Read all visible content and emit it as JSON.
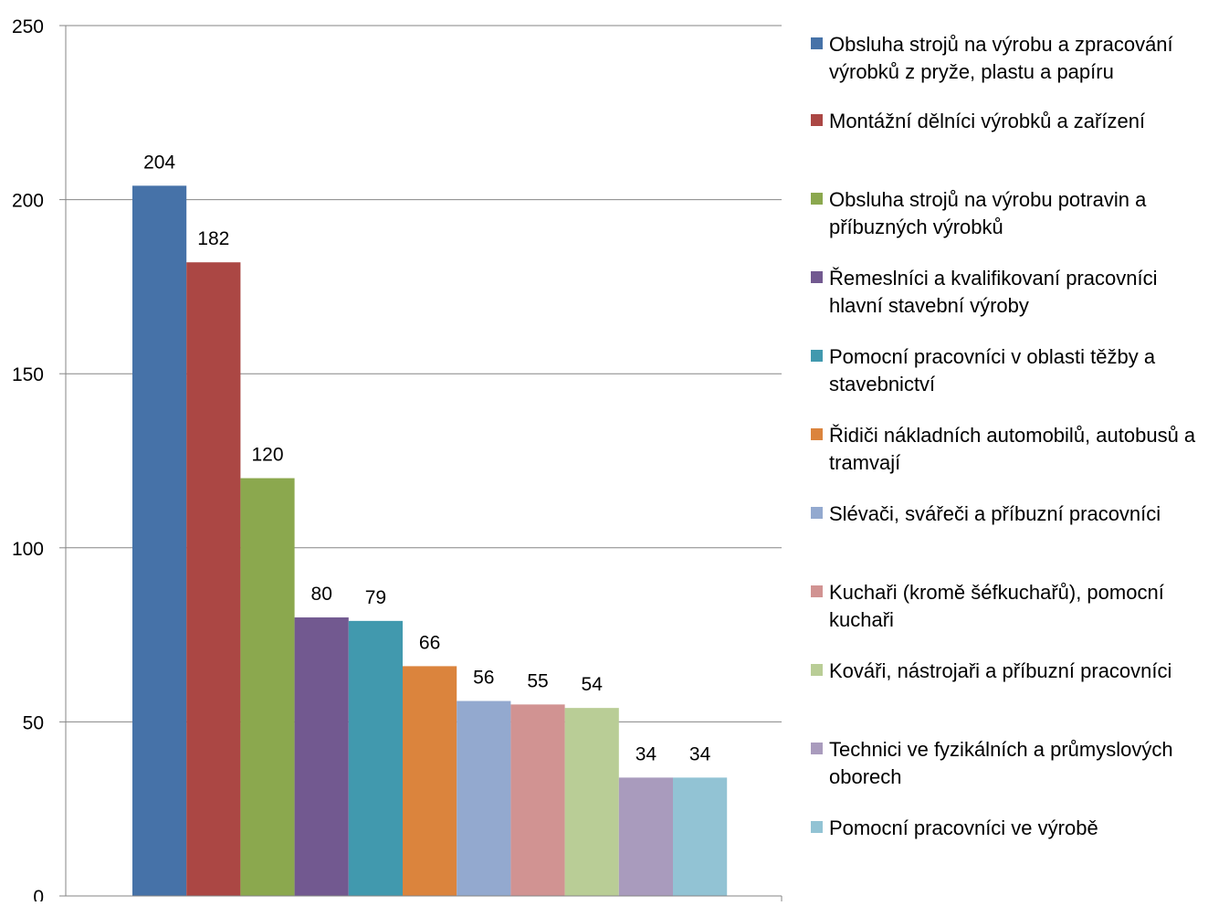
{
  "chart_data": {
    "type": "bar",
    "title": "",
    "xlabel": "",
    "ylabel": "",
    "ylim": [
      0,
      250
    ],
    "yticks": [
      0,
      50,
      100,
      150,
      200,
      250
    ],
    "grid": true,
    "legend_position": "right",
    "series": [
      {
        "name": "Obsluha strojů na výrobu a zpracování výrobků z pryže, plastu a papíru",
        "value": 204,
        "color": "#4672A8"
      },
      {
        "name": "Montážní dělníci výrobků a zařízení",
        "value": 182,
        "color": "#AB4744"
      },
      {
        "name": "Obsluha strojů na výrobu potravin a příbuzných výrobků",
        "value": 120,
        "color": "#8BA84E"
      },
      {
        "name": "Řemeslníci a kvalifikovaní pracovníci hlavní stavební výroby",
        "value": 80,
        "color": "#725990"
      },
      {
        "name": "Pomocní pracovníci v oblasti těžby a stavebnictví",
        "value": 79,
        "color": "#4199AE"
      },
      {
        "name": "Řidiči nákladních automobilů, autobusů a tramvají",
        "value": 66,
        "color": "#DB843D"
      },
      {
        "name": "Slévači, svářeči a příbuzní pracovníci",
        "value": 56,
        "color": "#93A9CF"
      },
      {
        "name": "Kuchaři (kromě šéfkuchařů), pomocní kuchaři",
        "value": 55,
        "color": "#D19392"
      },
      {
        "name": "Kováři, nástrojaři a příbuzní pracovníci",
        "value": 54,
        "color": "#B9CD96"
      },
      {
        "name": "Technici ve fyzikálních a průmyslových oborech",
        "value": 34,
        "color": "#A99BBD"
      },
      {
        "name": "Pomocní pracovníci ve výrobě",
        "value": 34,
        "color": "#92C3D4"
      }
    ]
  }
}
